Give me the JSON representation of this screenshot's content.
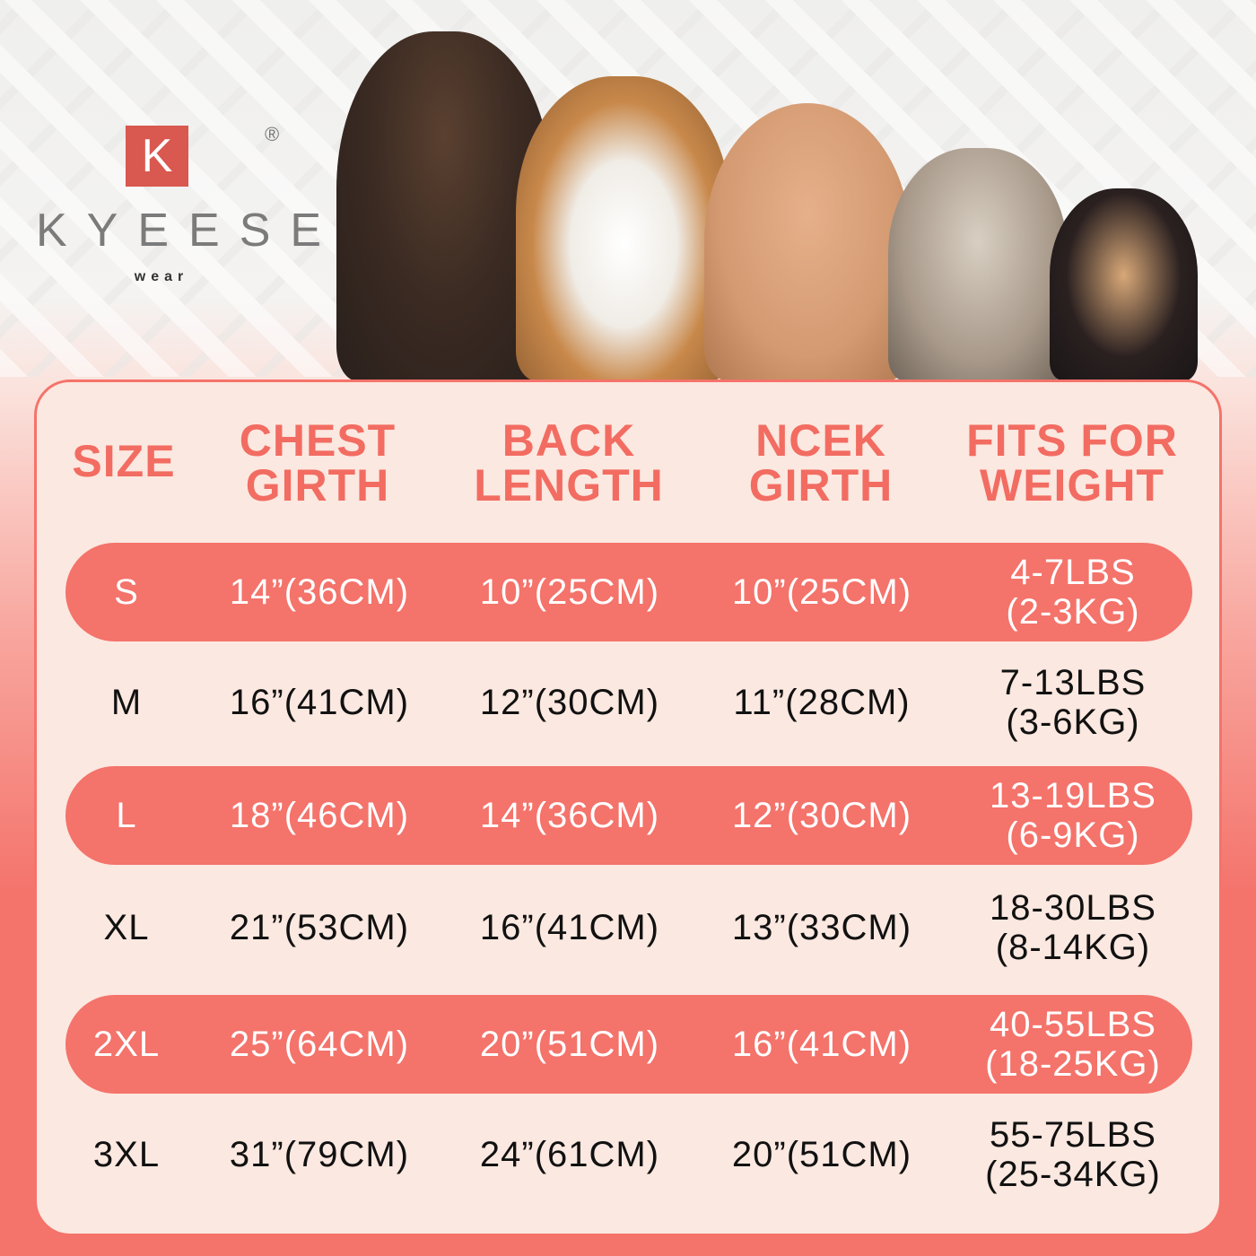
{
  "brand": {
    "logo_letter": "K",
    "name": "KYEESE",
    "sub": "wear",
    "registered": "®"
  },
  "colors": {
    "accent": "#f4736b",
    "card_bg": "#fbe8e0",
    "header_text": "#f26c62"
  },
  "headers": [
    {
      "line1": "SIZE",
      "line2": ""
    },
    {
      "line1": "CHEST",
      "line2": "GIRTH"
    },
    {
      "line1": "BACK",
      "line2": "LENGTH"
    },
    {
      "line1": "NCEK",
      "line2": "GIRTH"
    },
    {
      "line1": "FITS FOR",
      "line2": "WEIGHT"
    }
  ],
  "rows": [
    {
      "size": "S",
      "chest": "14”(36CM)",
      "back": "10”(25CM)",
      "neck": "10”(25CM)",
      "weight_lbs": "4-7LBS",
      "weight_kg": "(2-3KG)",
      "highlight": true
    },
    {
      "size": "M",
      "chest": "16”(41CM)",
      "back": "12”(30CM)",
      "neck": "11”(28CM)",
      "weight_lbs": "7-13LBS",
      "weight_kg": "(3-6KG)",
      "highlight": false
    },
    {
      "size": "L",
      "chest": "18”(46CM)",
      "back": "14”(36CM)",
      "neck": "12”(30CM)",
      "weight_lbs": "13-19LBS",
      "weight_kg": "(6-9KG)",
      "highlight": true
    },
    {
      "size": "XL",
      "chest": "21”(53CM)",
      "back": "16”(41CM)",
      "neck": "13”(33CM)",
      "weight_lbs": "18-30LBS",
      "weight_kg": "(8-14KG)",
      "highlight": false
    },
    {
      "size": "2XL",
      "chest": "25”(64CM)",
      "back": "20”(51CM)",
      "neck": "16”(41CM)",
      "weight_lbs": "40-55LBS",
      "weight_kg": "(18-25KG)",
      "highlight": true
    },
    {
      "size": "3XL",
      "chest": "31”(79CM)",
      "back": "24”(61CM)",
      "neck": "20”(51CM)",
      "weight_lbs": "55-75LBS",
      "weight_kg": "(25-34KG)",
      "highlight": false
    }
  ]
}
